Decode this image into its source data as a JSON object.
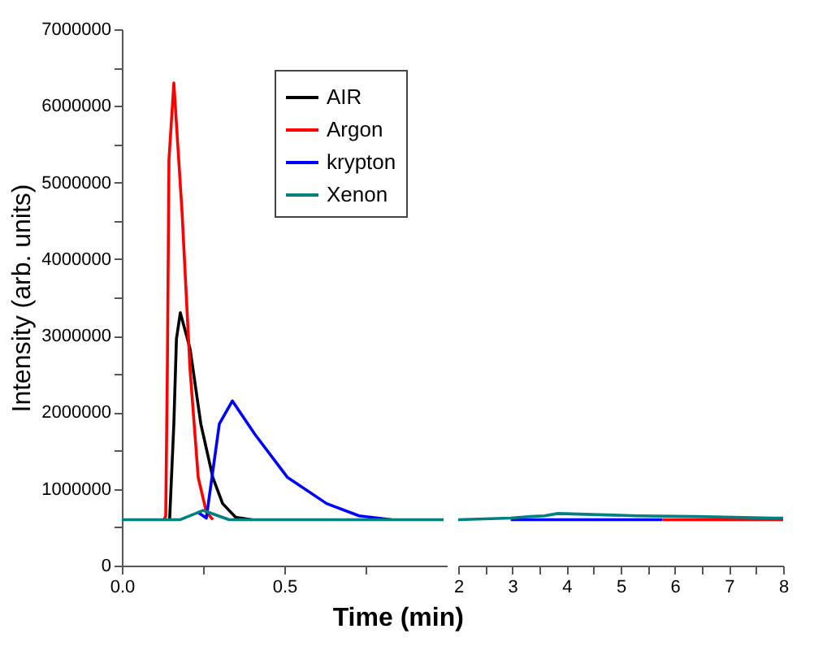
{
  "chart_data": [
    {
      "type": "line",
      "ylabel": "Intensity (arb. units)",
      "xlabel": "Time (min)",
      "xlim": [
        0,
        1.0
      ],
      "ylim": [
        0,
        7000000
      ],
      "xticks": [
        {
          "value": 0,
          "label": "0.0"
        },
        {
          "value": 0.25,
          "label": null
        },
        0.5,
        {
          "value": 0.75,
          "label": null
        }
      ],
      "yticks": [
        0,
        {
          "value": 500000,
          "label": null
        },
        1000000,
        {
          "value": 1500000,
          "label": null
        },
        2000000,
        {
          "value": 2500000,
          "label": null
        },
        3000000,
        {
          "value": 3500000,
          "label": null
        },
        4000000,
        {
          "value": 4500000,
          "label": null
        },
        5000000,
        {
          "value": 5500000,
          "label": null
        },
        6000000,
        {
          "value": 6500000,
          "label": null
        },
        7000000
      ],
      "grid": false,
      "legend": "top right",
      "line_style": "solid",
      "marker": "none",
      "series": [
        {
          "name": "AIR",
          "color": "#000000",
          "x": [
            0.147,
            0.16,
            0.168,
            0.18,
            0.21,
            0.243,
            0.28,
            0.31,
            0.35,
            0.4
          ],
          "values": [
            600000,
            1850000,
            2960000,
            3300000,
            2830000,
            1850000,
            1150000,
            810000,
            630000,
            600000
          ]
        },
        {
          "name": "Argon",
          "color": "#ff0000",
          "x": [
            0.13,
            0.135,
            0.14,
            0.145,
            0.16,
            0.185,
            0.21,
            0.235,
            0.26,
            0.28
          ],
          "values": [
            600000,
            650000,
            2550000,
            5300000,
            6300000,
            4630000,
            2550000,
            1150000,
            700000,
            600000
          ]
        },
        {
          "name": "krypton",
          "color": "#0000ff",
          "x": [
            0.233,
            0.26,
            0.3,
            0.34,
            0.41,
            0.51,
            0.63,
            0.73,
            0.83
          ],
          "values": [
            700000,
            620000,
            1850000,
            2150000,
            1710000,
            1150000,
            810000,
            650000,
            600000
          ]
        },
        {
          "name": "Xenon",
          "color": "#008080",
          "x": [
            0.0,
            0.18,
            0.25,
            0.33,
            0.99
          ],
          "values": [
            600000,
            600000,
            720000,
            600000,
            600000
          ]
        }
      ]
    },
    {
      "type": "line",
      "xlim": [
        2,
        8
      ],
      "ylim": [
        0,
        7000000
      ],
      "tick_labels": "x",
      "grid": false,
      "line_style": "solid",
      "marker": "none",
      "xticks": [
        2,
        {
          "value": 2.5,
          "label": null
        },
        3,
        {
          "value": 3.5,
          "label": null
        },
        4,
        {
          "value": 4.5,
          "label": null
        },
        5,
        {
          "value": 5.5,
          "label": null
        },
        6,
        {
          "value": 6.5,
          "label": null
        },
        7,
        {
          "value": 7.5,
          "label": null
        },
        8
      ],
      "yticks": [
        0,
        1000000,
        2000000,
        3000000,
        4000000,
        5000000,
        6000000,
        7000000
      ],
      "series": [
        {
          "color": "#0000ff",
          "x": [
            2.97,
            5.77
          ],
          "values": [
            600000,
            600000
          ]
        },
        {
          "color": "#ff0000",
          "x": [
            5.77,
            8.0
          ],
          "values": [
            600000,
            600000
          ]
        },
        {
          "color": "#008080",
          "x": [
            2.0,
            2.97,
            3.34,
            3.59,
            3.84,
            5.32,
            6.38,
            7.8,
            8.0
          ],
          "values": [
            600000,
            620000,
            640000,
            650000,
            680000,
            650000,
            640000,
            620000,
            620000
          ]
        }
      ]
    }
  ]
}
